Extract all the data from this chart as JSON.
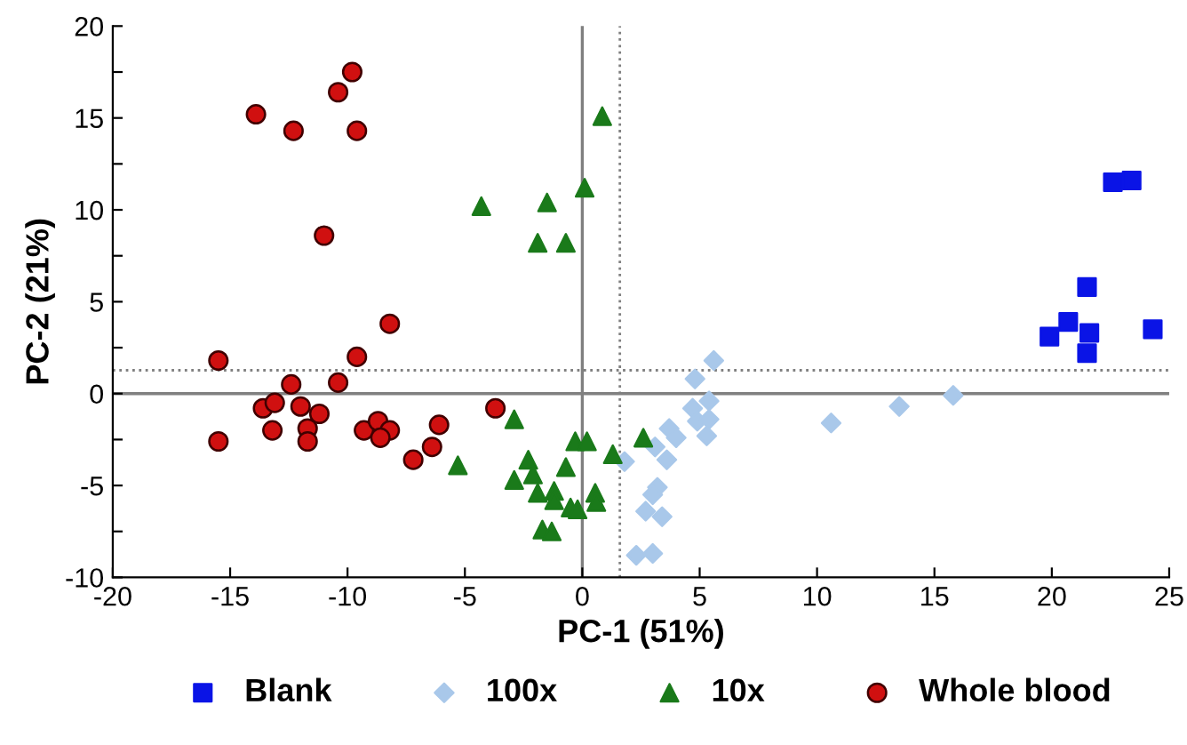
{
  "chart_data": {
    "type": "scatter",
    "xlabel": "PC-1 (51%)",
    "ylabel": "PC-2 (21%)",
    "xlim": [
      -20,
      25
    ],
    "xticks": [
      -20,
      -15,
      -10,
      -5,
      0,
      5,
      10,
      15,
      20,
      25
    ],
    "ylim": [
      -10,
      20
    ],
    "yticks": [
      -10,
      {
        "value": -7.5,
        "label": null
      },
      -5,
      {
        "value": -2.5,
        "label": null
      },
      0,
      {
        "value": 2.5,
        "label": null
      },
      5,
      {
        "value": 7.5,
        "label": null
      },
      10,
      {
        "value": 12.5,
        "label": null
      },
      15,
      {
        "value": 17.5,
        "label": null
      },
      20
    ],
    "grid": false,
    "legend": "bottom",
    "ref_lines": [
      {
        "axis": "x",
        "value": 0,
        "color": "#808080",
        "line_style": "solid"
      },
      {
        "axis": "y",
        "value": 0,
        "color": "#808080",
        "line_style": "solid"
      },
      {
        "axis": "x",
        "value": 1.6,
        "color": "#808080",
        "line_style": "dotted"
      },
      {
        "axis": "y",
        "value": 1.27,
        "color": "#808080",
        "line_style": "dotted"
      }
    ],
    "series": [
      {
        "name": "Blank",
        "color": "#0a14e6",
        "marker": "square",
        "x": [
          22.6,
          23.4,
          21.5,
          20.7,
          19.9,
          21.6,
          21.5,
          24.3
        ],
        "values": [
          11.5,
          11.6,
          5.8,
          3.9,
          3.1,
          3.3,
          2.2,
          3.5
        ]
      },
      {
        "name": "100x",
        "color": "#a9c8ea",
        "marker": "diamond",
        "x": [
          5.6,
          4.8,
          4.7,
          5.4,
          4.9,
          5.4,
          5.3,
          3.7,
          4.0,
          3.1,
          1.8,
          3.6,
          3.2,
          3.0,
          2.7,
          3.4,
          2.3,
          3.0,
          10.6,
          13.5,
          15.8
        ],
        "values": [
          1.8,
          0.8,
          -0.8,
          -0.4,
          -1.5,
          -1.4,
          -2.3,
          -1.9,
          -2.4,
          -2.9,
          -3.7,
          -3.6,
          -5.1,
          -5.5,
          -6.4,
          -6.7,
          -8.8,
          -8.7,
          -1.6,
          -0.7,
          -0.1
        ]
      },
      {
        "name": "10x",
        "color": "#1a7a1a",
        "marker": "triangle",
        "x": [
          0.85,
          0.1,
          -4.3,
          -1.5,
          -1.9,
          -0.7,
          -2.9,
          -5.3,
          -0.3,
          0.2,
          1.3,
          -2.3,
          -0.7,
          -2.9,
          -2.1,
          -1.9,
          -1.2,
          -1.2,
          -0.5,
          -0.2,
          0.55,
          0.6,
          -1.7,
          -1.3,
          2.6
        ],
        "values": [
          15.1,
          11.2,
          10.2,
          10.4,
          8.2,
          8.2,
          -1.4,
          -3.9,
          -2.6,
          -2.6,
          -3.3,
          -3.6,
          -4.0,
          -4.7,
          -4.4,
          -5.4,
          -5.3,
          -5.8,
          -6.2,
          -6.3,
          -5.4,
          -5.9,
          -7.4,
          -7.5,
          -2.4
        ]
      },
      {
        "name": "Whole blood",
        "color": "#d01010",
        "marker": "circle",
        "x": [
          -9.8,
          -10.4,
          -13.9,
          -12.3,
          -9.6,
          -11.0,
          -8.2,
          -15.5,
          -9.6,
          -12.4,
          -10.4,
          -13.6,
          -13.1,
          -12.0,
          -11.2,
          -13.2,
          -11.7,
          -11.7,
          -15.5,
          -9.3,
          -8.7,
          -8.2,
          -8.6,
          -6.1,
          -6.4,
          -7.2,
          -3.7
        ],
        "values": [
          17.5,
          16.4,
          15.2,
          14.3,
          14.3,
          8.6,
          3.8,
          1.8,
          2.0,
          0.5,
          0.6,
          -0.8,
          -0.5,
          -0.7,
          -1.1,
          -2.0,
          -1.9,
          -2.6,
          -2.6,
          -2.0,
          -1.5,
          -2.0,
          -2.4,
          -1.7,
          -2.9,
          -3.6,
          -0.8
        ]
      }
    ]
  }
}
